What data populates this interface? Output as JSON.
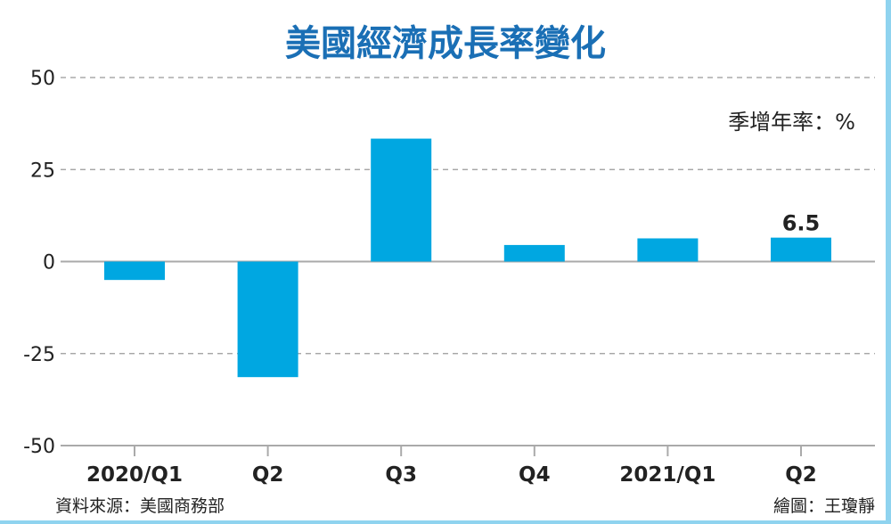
{
  "chart_data": {
    "type": "bar",
    "title": "美國經濟成長率變化",
    "unit_label": "季增年率：%",
    "categories": [
      "2020/Q1",
      "Q2",
      "Q3",
      "Q4",
      "2021/Q1",
      "Q2"
    ],
    "values": [
      -5.0,
      -31.4,
      33.4,
      4.5,
      6.3,
      6.5
    ],
    "data_labels": [
      {
        "index": 5,
        "text": "6.5"
      }
    ],
    "ylim": [
      -50,
      50
    ],
    "yticks": [
      50,
      25,
      0,
      -25,
      -50
    ],
    "grid": "dashed horizontal",
    "bar_color": "#00a7e1",
    "title_color": "#1a6fb5"
  },
  "footer": {
    "source": "資料來源：美國商務部",
    "credit": "繪圖：王瓊靜"
  }
}
